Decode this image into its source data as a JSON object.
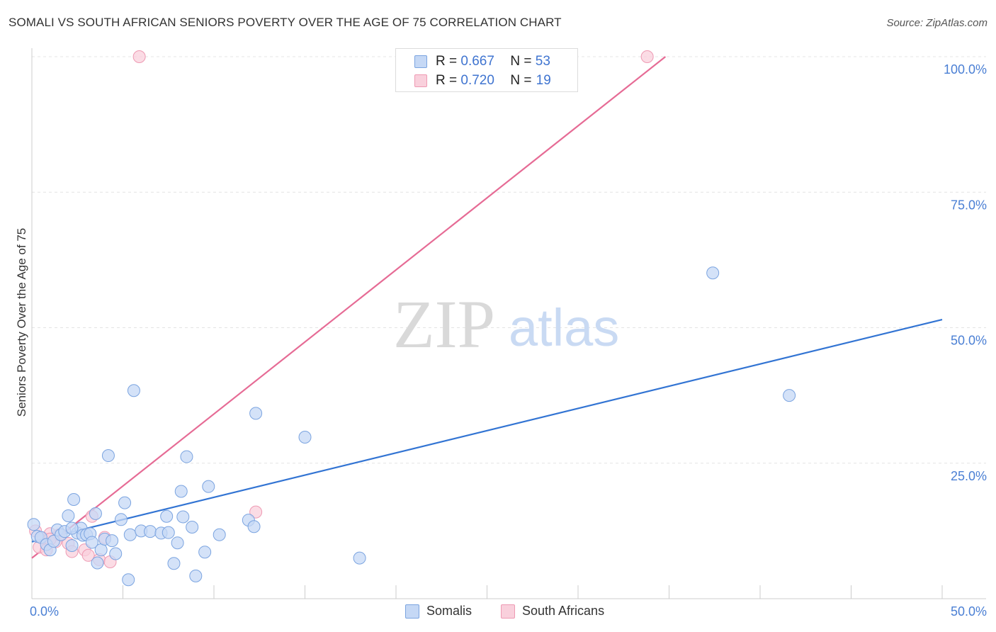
{
  "header": {
    "title": "SOMALI VS SOUTH AFRICAN SENIORS POVERTY OVER THE AGE OF 75 CORRELATION CHART",
    "source": "Source: ZipAtlas.com"
  },
  "colors": {
    "somali_fill": "#c5d8f5",
    "somali_stroke": "#7ba4e0",
    "somali_line": "#3274d3",
    "sa_fill": "#f9d0dc",
    "sa_stroke": "#ee9ab3",
    "sa_line": "#e66b95",
    "grid": "#e4e4e4",
    "tick_text": "#4a7fd4"
  },
  "legend": {
    "r_label": "R =",
    "n_label": "N =",
    "somali_r": "0.667",
    "somali_n": "53",
    "sa_r": "0.720",
    "sa_n": "19"
  },
  "watermark": {
    "zip": "ZIP",
    "atlas": "atlas"
  },
  "chart_data": {
    "type": "scatter",
    "title": "SOMALI VS SOUTH AFRICAN SENIORS POVERTY OVER THE AGE OF 75 CORRELATION CHART",
    "xlabel": "",
    "ylabel": "Seniors Poverty Over the Age of 75",
    "xlim": [
      0,
      50
    ],
    "ylim": [
      0,
      100
    ],
    "x_tick_labels": [
      "0.0%",
      "50.0%"
    ],
    "y_tick_labels": [
      "25.0%",
      "50.0%",
      "75.0%",
      "100.0%"
    ],
    "y_ticks": [
      25,
      50,
      75,
      100
    ],
    "legend_bottom": [
      "Somalis",
      "South Africans"
    ],
    "series": [
      {
        "name": "Somalis",
        "r": 0.667,
        "n": 53,
        "trend": {
          "x": [
            0,
            50
          ],
          "y": [
            10.5,
            51.5
          ]
        },
        "points": [
          [
            0.1,
            13.7
          ],
          [
            0.3,
            11.5
          ],
          [
            0.5,
            11.3
          ],
          [
            0.8,
            10.0
          ],
          [
            1.0,
            9.0
          ],
          [
            1.2,
            10.6
          ],
          [
            1.4,
            12.7
          ],
          [
            1.6,
            11.8
          ],
          [
            1.8,
            12.4
          ],
          [
            2.0,
            15.3
          ],
          [
            2.2,
            9.8
          ],
          [
            2.3,
            18.3
          ],
          [
            2.5,
            12.1
          ],
          [
            2.7,
            13.0
          ],
          [
            2.8,
            11.7
          ],
          [
            3.0,
            11.8
          ],
          [
            3.2,
            12.0
          ],
          [
            3.3,
            10.4
          ],
          [
            3.5,
            15.7
          ],
          [
            3.6,
            6.6
          ],
          [
            3.8,
            9.0
          ],
          [
            4.0,
            11.0
          ],
          [
            4.2,
            26.4
          ],
          [
            4.4,
            10.7
          ],
          [
            4.6,
            8.3
          ],
          [
            4.9,
            14.6
          ],
          [
            5.1,
            17.7
          ],
          [
            5.4,
            11.8
          ],
          [
            5.6,
            38.4
          ],
          [
            6.0,
            12.5
          ],
          [
            6.5,
            12.4
          ],
          [
            7.1,
            12.1
          ],
          [
            7.5,
            12.2
          ],
          [
            7.8,
            6.5
          ],
          [
            8.0,
            10.3
          ],
          [
            8.2,
            19.8
          ],
          [
            8.5,
            26.2
          ],
          [
            8.8,
            13.2
          ],
          [
            8.3,
            15.1
          ],
          [
            7.4,
            15.2
          ],
          [
            9.5,
            8.6
          ],
          [
            9.7,
            20.7
          ],
          [
            10.3,
            11.8
          ],
          [
            11.9,
            14.5
          ],
          [
            12.2,
            13.3
          ],
          [
            12.3,
            34.2
          ],
          [
            15.0,
            29.8
          ],
          [
            18.0,
            7.5
          ],
          [
            5.3,
            3.5
          ],
          [
            9.0,
            4.2
          ],
          [
            2.2,
            13.0
          ],
          [
            37.4,
            60.1
          ],
          [
            41.6,
            37.5
          ]
        ]
      },
      {
        "name": "South Africans",
        "r": 0.72,
        "n": 19,
        "trend": {
          "x": [
            0,
            34.8
          ],
          "y": [
            7.5,
            100
          ]
        },
        "points": [
          [
            0.2,
            12.5
          ],
          [
            0.4,
            9.5
          ],
          [
            0.6,
            11.2
          ],
          [
            0.8,
            9.0
          ],
          [
            1.0,
            12.0
          ],
          [
            1.3,
            10.5
          ],
          [
            1.5,
            11.8
          ],
          [
            2.0,
            10.2
          ],
          [
            2.2,
            8.7
          ],
          [
            2.9,
            9.0
          ],
          [
            3.1,
            8.0
          ],
          [
            3.3,
            15.2
          ],
          [
            3.7,
            7.2
          ],
          [
            4.0,
            11.3
          ],
          [
            4.3,
            6.8
          ],
          [
            12.3,
            16.0
          ],
          [
            5.9,
            100.0
          ],
          [
            33.8,
            100.0
          ],
          [
            1.0,
            11.0
          ]
        ]
      }
    ]
  }
}
